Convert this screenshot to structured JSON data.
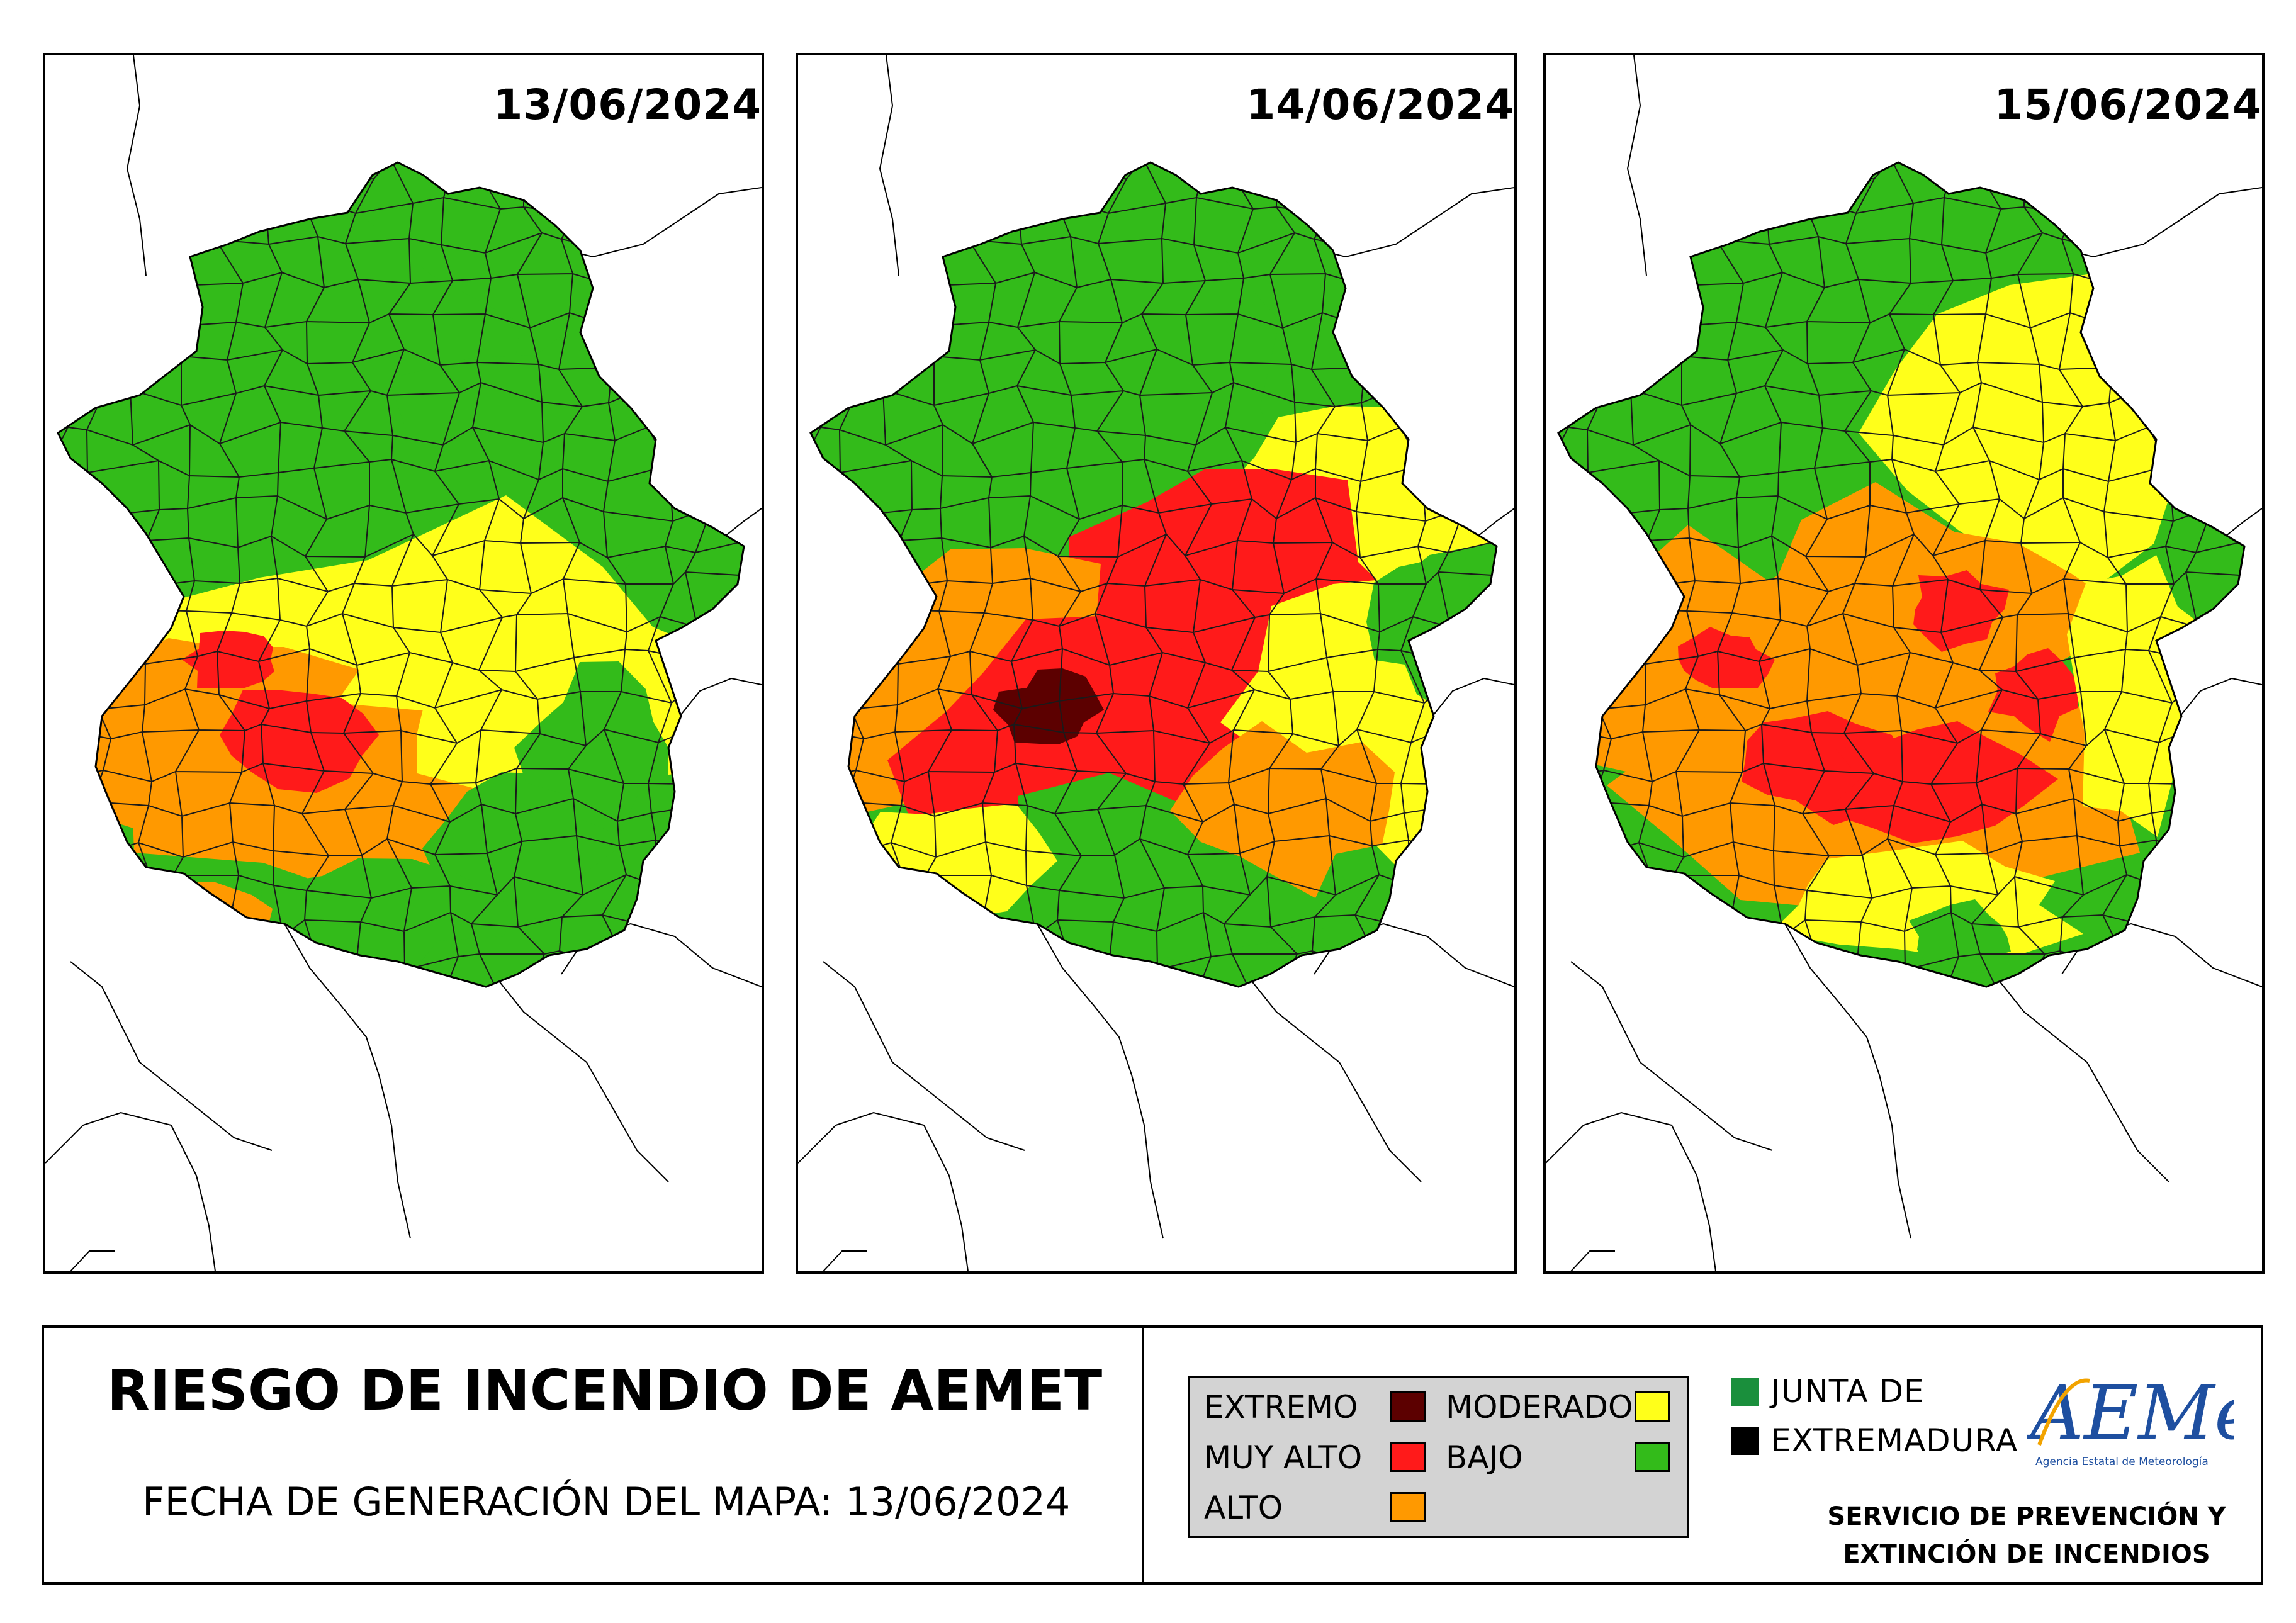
{
  "maps": [
    {
      "date": "13/06/2024"
    },
    {
      "date": "14/06/2024"
    },
    {
      "date": "15/06/2024"
    }
  ],
  "footer": {
    "title": "RIESGO DE INCENDIO DE AEMET",
    "generation_date": "FECHA DE GENERACIÓN DEL MAPA: 13/06/2024"
  },
  "legend": {
    "extremo": "EXTREMO",
    "muy_alto": "MUY ALTO",
    "alto": "ALTO",
    "moderado": "MODERADO",
    "bajo": "BAJO"
  },
  "colors": {
    "extremo": "#5c0000",
    "muy_alto": "#ff1a1a",
    "alto": "#ff9900",
    "moderado": "#ffff1a",
    "bajo": "#33bb1a",
    "junta_green": "#1a8f3c"
  },
  "junta": {
    "line1": "JUNTA DE",
    "line2": "EXTREMADURA"
  },
  "aemet": {
    "logo_text": "AEMet",
    "subtitle": "Agencia Estatal de Meteorología"
  },
  "servicio": {
    "line1": "SERVICIO DE PREVENCIÓN Y",
    "line2": "EXTINCIÓN DE INCENDIOS"
  }
}
